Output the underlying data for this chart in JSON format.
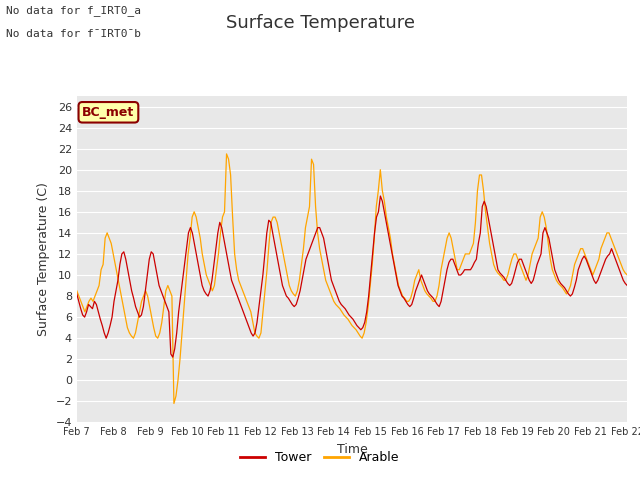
{
  "title": "Surface Temperature",
  "ylabel": "Surface Temperature (C)",
  "xlabel": "Time",
  "annotation_line1": "No data for f_IRT0_a",
  "annotation_line2": "No data for f¯IRT0¯b",
  "legend_label_text": "BC_met",
  "legend_tower": "Tower",
  "legend_arable": "Arable",
  "tower_color": "#cc0000",
  "arable_color": "#ffa500",
  "plot_bg_color": "#e8e8e8",
  "grid_color": "#ffffff",
  "ylim": [
    -4,
    27
  ],
  "yticks": [
    -4,
    -2,
    0,
    2,
    4,
    6,
    8,
    10,
    12,
    14,
    16,
    18,
    20,
    22,
    24,
    26
  ],
  "x_labels": [
    "Feb 7",
    "Feb 8",
    "Feb 9",
    "Feb 10",
    "Feb 11",
    "Feb 12",
    "Feb 13",
    "Feb 14",
    "Feb 15",
    "Feb 16",
    "Feb 17",
    "Feb 18",
    "Feb 19",
    "Feb 20",
    "Feb 21",
    "Feb 22"
  ],
  "num_days": 15,
  "tower_data": [
    8.2,
    7.5,
    6.8,
    6.2,
    6.0,
    6.5,
    7.2,
    7.0,
    6.8,
    7.5,
    7.2,
    6.5,
    5.8,
    5.2,
    4.5,
    4.0,
    4.5,
    5.2,
    6.0,
    7.5,
    8.5,
    9.5,
    11.0,
    12.0,
    12.2,
    11.5,
    10.5,
    9.5,
    8.5,
    7.8,
    7.0,
    6.5,
    6.0,
    6.2,
    7.0,
    8.5,
    10.0,
    11.5,
    12.2,
    12.0,
    11.0,
    10.0,
    9.0,
    8.5,
    8.0,
    7.5,
    7.0,
    6.5,
    2.5,
    2.2,
    3.0,
    4.5,
    6.5,
    8.0,
    9.5,
    11.0,
    12.5,
    14.0,
    14.5,
    14.0,
    13.0,
    12.0,
    11.0,
    10.0,
    9.0,
    8.5,
    8.2,
    8.0,
    8.5,
    9.5,
    11.0,
    12.5,
    14.0,
    15.0,
    14.5,
    13.5,
    12.5,
    11.5,
    10.5,
    9.5,
    9.0,
    8.5,
    8.0,
    7.5,
    7.0,
    6.5,
    6.0,
    5.5,
    5.0,
    4.5,
    4.2,
    4.5,
    5.5,
    7.0,
    8.5,
    10.0,
    12.0,
    14.0,
    15.2,
    15.0,
    14.0,
    13.0,
    12.0,
    11.0,
    10.0,
    9.0,
    8.5,
    8.0,
    7.8,
    7.5,
    7.2,
    7.0,
    7.2,
    7.8,
    8.5,
    9.5,
    10.5,
    11.5,
    12.0,
    12.5,
    13.0,
    13.5,
    14.0,
    14.5,
    14.5,
    14.0,
    13.5,
    12.5,
    11.5,
    10.5,
    9.5,
    9.0,
    8.5,
    8.0,
    7.5,
    7.2,
    7.0,
    6.8,
    6.5,
    6.2,
    6.0,
    5.8,
    5.5,
    5.2,
    5.0,
    4.8,
    5.0,
    5.5,
    6.5,
    8.0,
    10.0,
    12.0,
    14.0,
    15.5,
    16.0,
    17.5,
    17.0,
    16.0,
    15.0,
    14.0,
    13.0,
    12.0,
    11.0,
    10.0,
    9.0,
    8.5,
    8.0,
    7.8,
    7.5,
    7.2,
    7.0,
    7.2,
    7.8,
    8.5,
    9.0,
    9.5,
    10.0,
    9.5,
    9.0,
    8.5,
    8.2,
    8.0,
    7.8,
    7.5,
    7.2,
    7.0,
    7.5,
    8.5,
    9.5,
    10.5,
    11.2,
    11.5,
    11.5,
    11.0,
    10.5,
    10.0,
    10.0,
    10.2,
    10.5,
    10.5,
    10.5,
    10.5,
    10.8,
    11.2,
    11.5,
    13.0,
    14.0,
    16.5,
    17.0,
    16.5,
    15.5,
    14.5,
    13.5,
    12.5,
    11.5,
    10.5,
    10.2,
    10.0,
    9.8,
    9.5,
    9.2,
    9.0,
    9.2,
    9.8,
    10.5,
    11.2,
    11.5,
    11.5,
    11.0,
    10.5,
    10.0,
    9.5,
    9.2,
    9.5,
    10.2,
    11.0,
    11.5,
    12.0,
    14.0,
    14.5,
    14.0,
    13.5,
    12.5,
    11.5,
    10.5,
    10.0,
    9.5,
    9.2,
    9.0,
    8.8,
    8.5,
    8.2,
    8.0,
    8.2,
    8.8,
    9.5,
    10.5,
    11.0,
    11.5,
    11.8,
    11.5,
    11.0,
    10.5,
    10.0,
    9.5,
    9.2,
    9.5,
    10.0,
    10.5,
    11.0,
    11.5,
    11.8,
    12.0,
    12.5,
    12.0,
    11.5,
    11.0,
    10.5,
    10.0,
    9.5,
    9.2,
    9.0
  ],
  "arable_data": [
    8.5,
    8.0,
    7.5,
    7.0,
    6.5,
    7.0,
    7.5,
    7.8,
    7.5,
    8.0,
    8.5,
    9.0,
    10.5,
    11.0,
    13.5,
    14.0,
    13.5,
    13.0,
    12.0,
    11.0,
    10.0,
    9.0,
    8.0,
    7.0,
    6.0,
    5.0,
    4.5,
    4.2,
    4.0,
    4.5,
    5.5,
    6.5,
    7.5,
    8.0,
    8.5,
    8.0,
    7.0,
    6.0,
    5.0,
    4.2,
    4.0,
    4.5,
    5.5,
    7.0,
    8.5,
    9.0,
    8.5,
    8.0,
    -2.2,
    -1.5,
    0.0,
    2.0,
    4.5,
    7.0,
    9.5,
    12.0,
    13.5,
    15.5,
    16.0,
    15.5,
    14.5,
    13.5,
    12.0,
    11.0,
    10.0,
    9.5,
    9.0,
    8.5,
    9.0,
    10.5,
    12.0,
    14.0,
    15.5,
    16.0,
    21.5,
    21.0,
    19.5,
    15.5,
    12.0,
    10.5,
    9.5,
    9.0,
    8.5,
    8.0,
    7.5,
    7.0,
    6.5,
    5.5,
    4.5,
    4.2,
    4.0,
    4.5,
    6.5,
    8.5,
    10.5,
    13.0,
    15.0,
    15.5,
    15.5,
    15.0,
    14.0,
    13.0,
    12.0,
    11.0,
    10.0,
    9.0,
    8.5,
    8.2,
    8.0,
    8.5,
    9.5,
    11.0,
    12.5,
    14.5,
    15.5,
    16.5,
    21.0,
    20.5,
    16.5,
    14.0,
    12.5,
    11.5,
    10.5,
    9.5,
    9.0,
    8.5,
    8.0,
    7.5,
    7.2,
    7.0,
    6.8,
    6.5,
    6.2,
    6.0,
    5.8,
    5.5,
    5.2,
    5.0,
    4.8,
    4.5,
    4.2,
    4.0,
    4.5,
    5.5,
    7.0,
    9.0,
    11.0,
    13.5,
    16.5,
    18.0,
    20.0,
    18.0,
    17.0,
    15.5,
    14.5,
    13.5,
    12.0,
    11.0,
    10.0,
    9.0,
    8.5,
    8.0,
    7.8,
    7.5,
    7.5,
    7.8,
    8.5,
    9.5,
    10.0,
    10.5,
    9.5,
    9.0,
    8.5,
    8.2,
    8.0,
    7.8,
    7.5,
    7.5,
    8.0,
    9.0,
    10.5,
    11.5,
    12.5,
    13.5,
    14.0,
    13.5,
    12.5,
    11.5,
    10.5,
    10.5,
    11.0,
    11.5,
    12.0,
    12.0,
    12.0,
    12.5,
    13.0,
    15.0,
    18.0,
    19.5,
    19.5,
    18.0,
    16.0,
    14.5,
    13.0,
    12.0,
    11.0,
    10.5,
    10.2,
    10.0,
    9.8,
    9.5,
    9.5,
    10.0,
    10.8,
    11.5,
    12.0,
    12.0,
    11.5,
    11.0,
    10.5,
    10.0,
    9.5,
    10.0,
    11.0,
    12.0,
    12.5,
    13.0,
    13.5,
    15.5,
    16.0,
    15.5,
    14.5,
    13.0,
    11.5,
    10.5,
    10.0,
    9.5,
    9.2,
    9.0,
    8.8,
    8.5,
    8.2,
    8.5,
    9.0,
    10.0,
    11.0,
    11.5,
    12.0,
    12.5,
    12.5,
    12.0,
    11.5,
    11.0,
    10.5,
    10.0,
    10.5,
    11.0,
    11.5,
    12.5,
    13.0,
    13.5,
    14.0,
    14.0,
    13.5,
    13.0,
    12.5,
    12.0,
    11.5,
    11.0,
    10.5,
    10.2,
    10.0
  ]
}
